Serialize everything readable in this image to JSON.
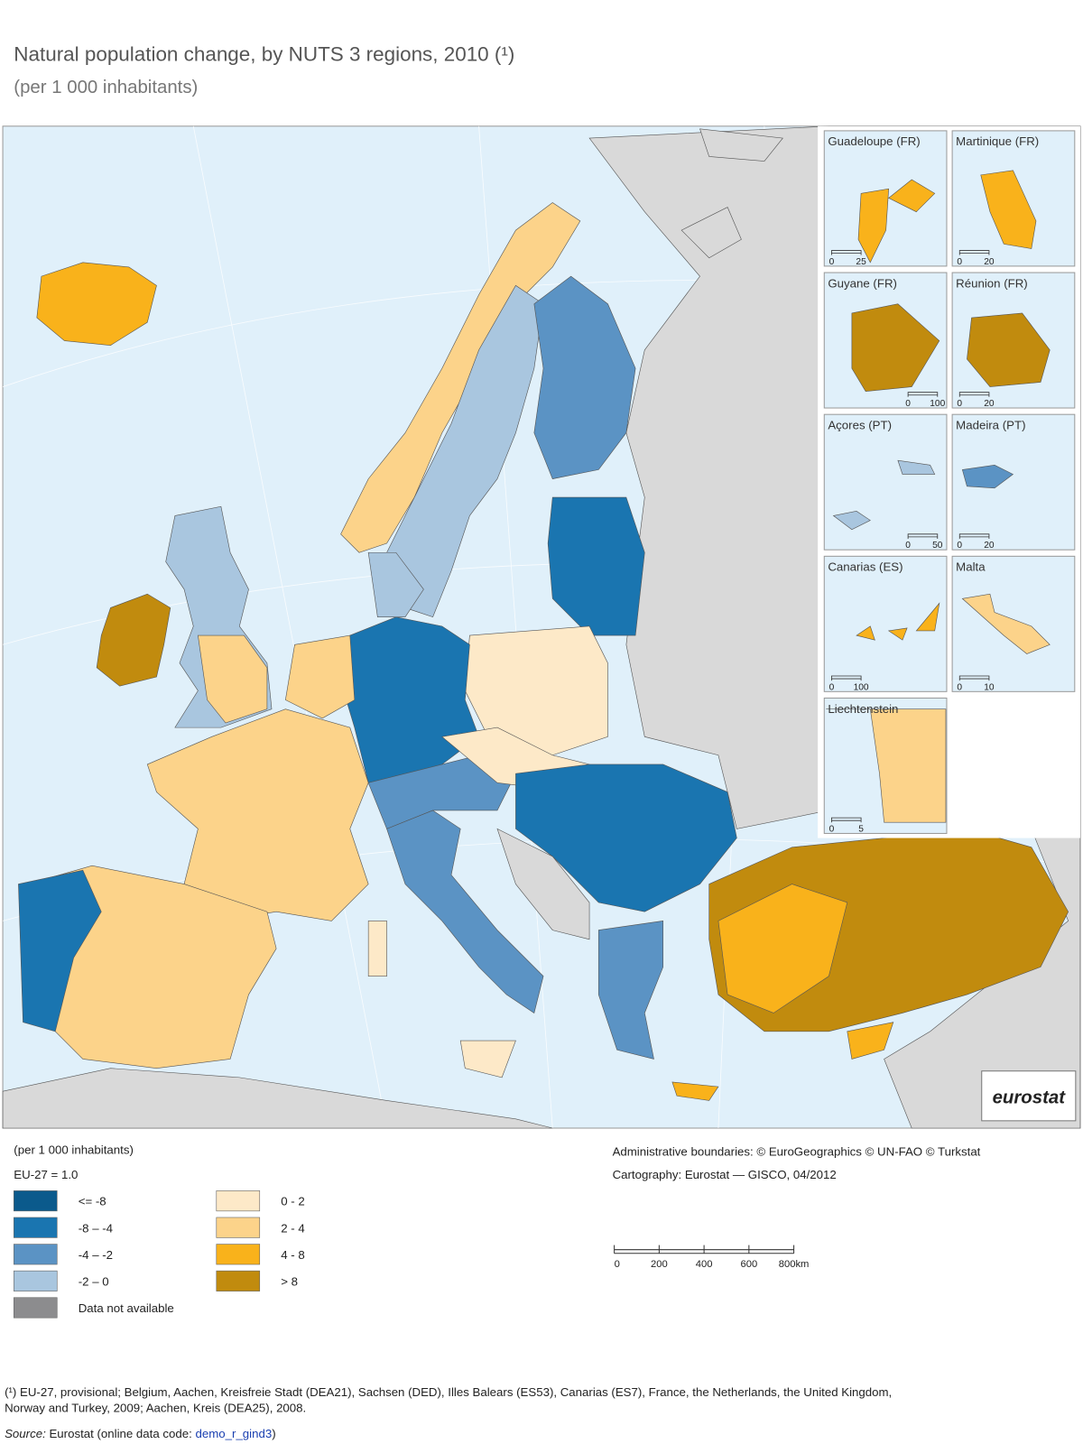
{
  "header": {
    "title": "Natural population change, by NUTS 3 regions, 2010 (¹)",
    "subtitle": "(per 1 000 inhabitants)"
  },
  "insets": [
    {
      "name": "Guadeloupe (FR)",
      "scale": [
        0,
        25
      ]
    },
    {
      "name": "Martinique (FR)",
      "scale": [
        0,
        20
      ]
    },
    {
      "name": "Guyane (FR)",
      "scale": [
        0,
        100
      ]
    },
    {
      "name": "Réunion (FR)",
      "scale": [
        0,
        20
      ]
    },
    {
      "name": "Açores (PT)",
      "scale": [
        0,
        50
      ]
    },
    {
      "name": "Madeira (PT)",
      "scale": [
        0,
        20
      ]
    },
    {
      "name": "Canarias (ES)",
      "scale": [
        0,
        100
      ]
    },
    {
      "name": "Malta",
      "scale": [
        0,
        10
      ]
    },
    {
      "name": "Liechtenstein",
      "scale": [
        0,
        5
      ]
    }
  ],
  "logo": "eurostat",
  "legend": {
    "title": "(per 1 000 inhabitants)",
    "note": "EU-27 = 1.0",
    "items": [
      {
        "label": "<= -8",
        "color": "#0b5a8c"
      },
      {
        "label": "-8 – -4",
        "color": "#1a75b0"
      },
      {
        "label": "-4 – -2",
        "color": "#5b93c4"
      },
      {
        "label": "-2 – 0",
        "color": "#a9c6df"
      },
      {
        "label": "Data not available",
        "color": "#8c8c8e"
      },
      {
        "label": "0 - 2",
        "color": "#fde9c8"
      },
      {
        "label": "2 - 4",
        "color": "#fcd38a"
      },
      {
        "label": "4 - 8",
        "color": "#f9b21b"
      },
      {
        "label": "> 8",
        "color": "#c18b0e"
      }
    ]
  },
  "credits": [
    "Administrative boundaries: © EuroGeographics © UN-FAO © Turkstat",
    "Cartography: Eurostat — GISCO, 04/2012"
  ],
  "scale_bar": {
    "ticks": [
      0,
      200,
      400,
      600,
      {
        "value": 800,
        "label": "800km"
      }
    ]
  },
  "footnote": [
    "(¹) EU-27, provisional; Belgium, Aachen, Kreisfreie Stadt (DEA21), Sachsen (DED), Illes Balears (ES53), Canarias (ES7), France, the Netherlands, the United Kingdom,",
    "Norway and Turkey, 2009; Aachen, Kreis (DEA25), 2008."
  ],
  "source": {
    "label": "Source:",
    "text": "Eurostat (online data code:",
    "code": "demo_r_gind3",
    "close": ")"
  }
}
